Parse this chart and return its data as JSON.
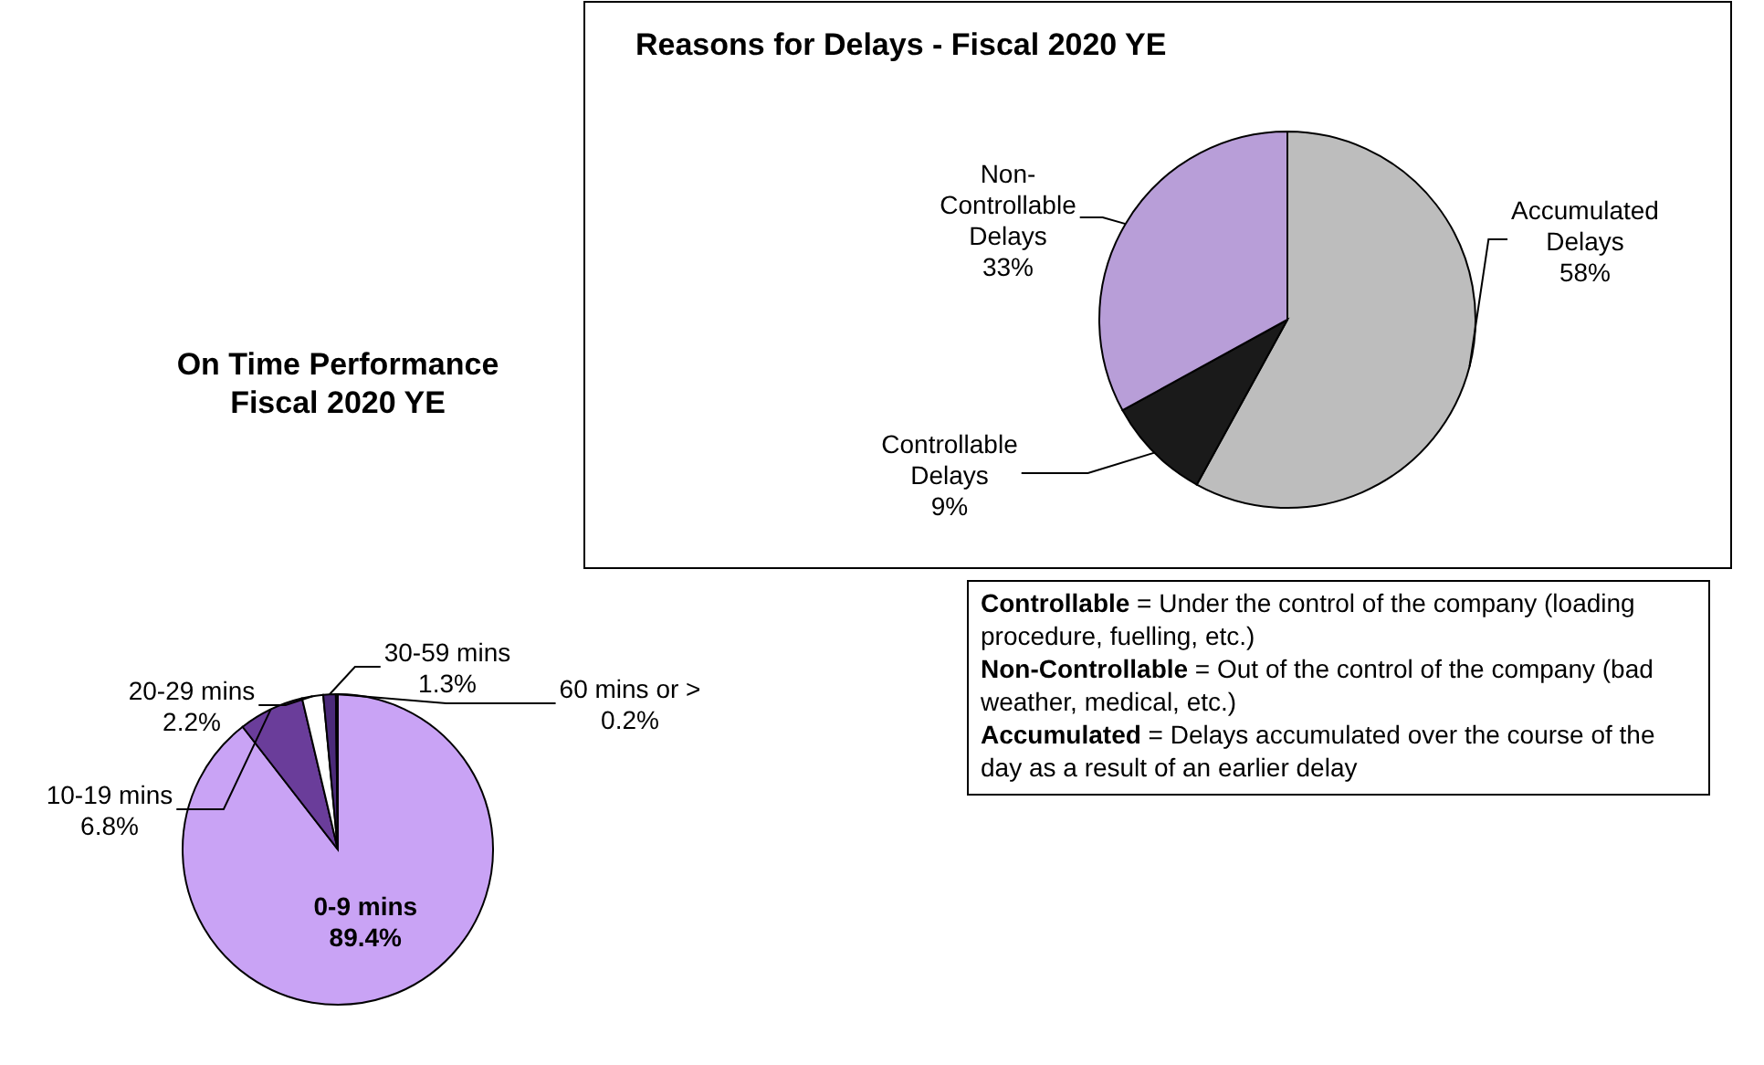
{
  "chart_data": [
    {
      "type": "pie",
      "title": "On Time Performance Fiscal 2020 YE",
      "categories": [
        "0-9 mins",
        "10-19 mins",
        "20-29 mins",
        "30-59 mins",
        "60 mins or >"
      ],
      "values": [
        89.4,
        6.8,
        2.2,
        1.3,
        0.2
      ],
      "value_labels": [
        "89.4%",
        "6.8%",
        "2.2%",
        "1.3%",
        "0.2%"
      ],
      "colors": [
        "#c9a3f5",
        "#6a3d9a",
        "#ffffff",
        "#4b2a7a",
        "#2e1a4a"
      ]
    },
    {
      "type": "pie",
      "title": "Reasons for Delays - Fiscal 2020 YE",
      "categories": [
        "Accumulated Delays",
        "Controllable Delays",
        "Non-Controllable Delays"
      ],
      "values": [
        58,
        9,
        33
      ],
      "value_labels": [
        "58%",
        "9%",
        "33%"
      ],
      "colors": [
        "#bdbdbd",
        "#1a1a1a",
        "#b89ed8"
      ]
    },
    {
      "type": "other",
      "annotations": [
        "Controllable = Under the control of the company (loading procedure, fuelling, etc.)",
        "Non-Controllable = Out of the control of the company (bad weather, medical, etc.)",
        "Accumulated = Delays accumulated over the course of the day as a result of an earlier delay"
      ]
    }
  ]
}
